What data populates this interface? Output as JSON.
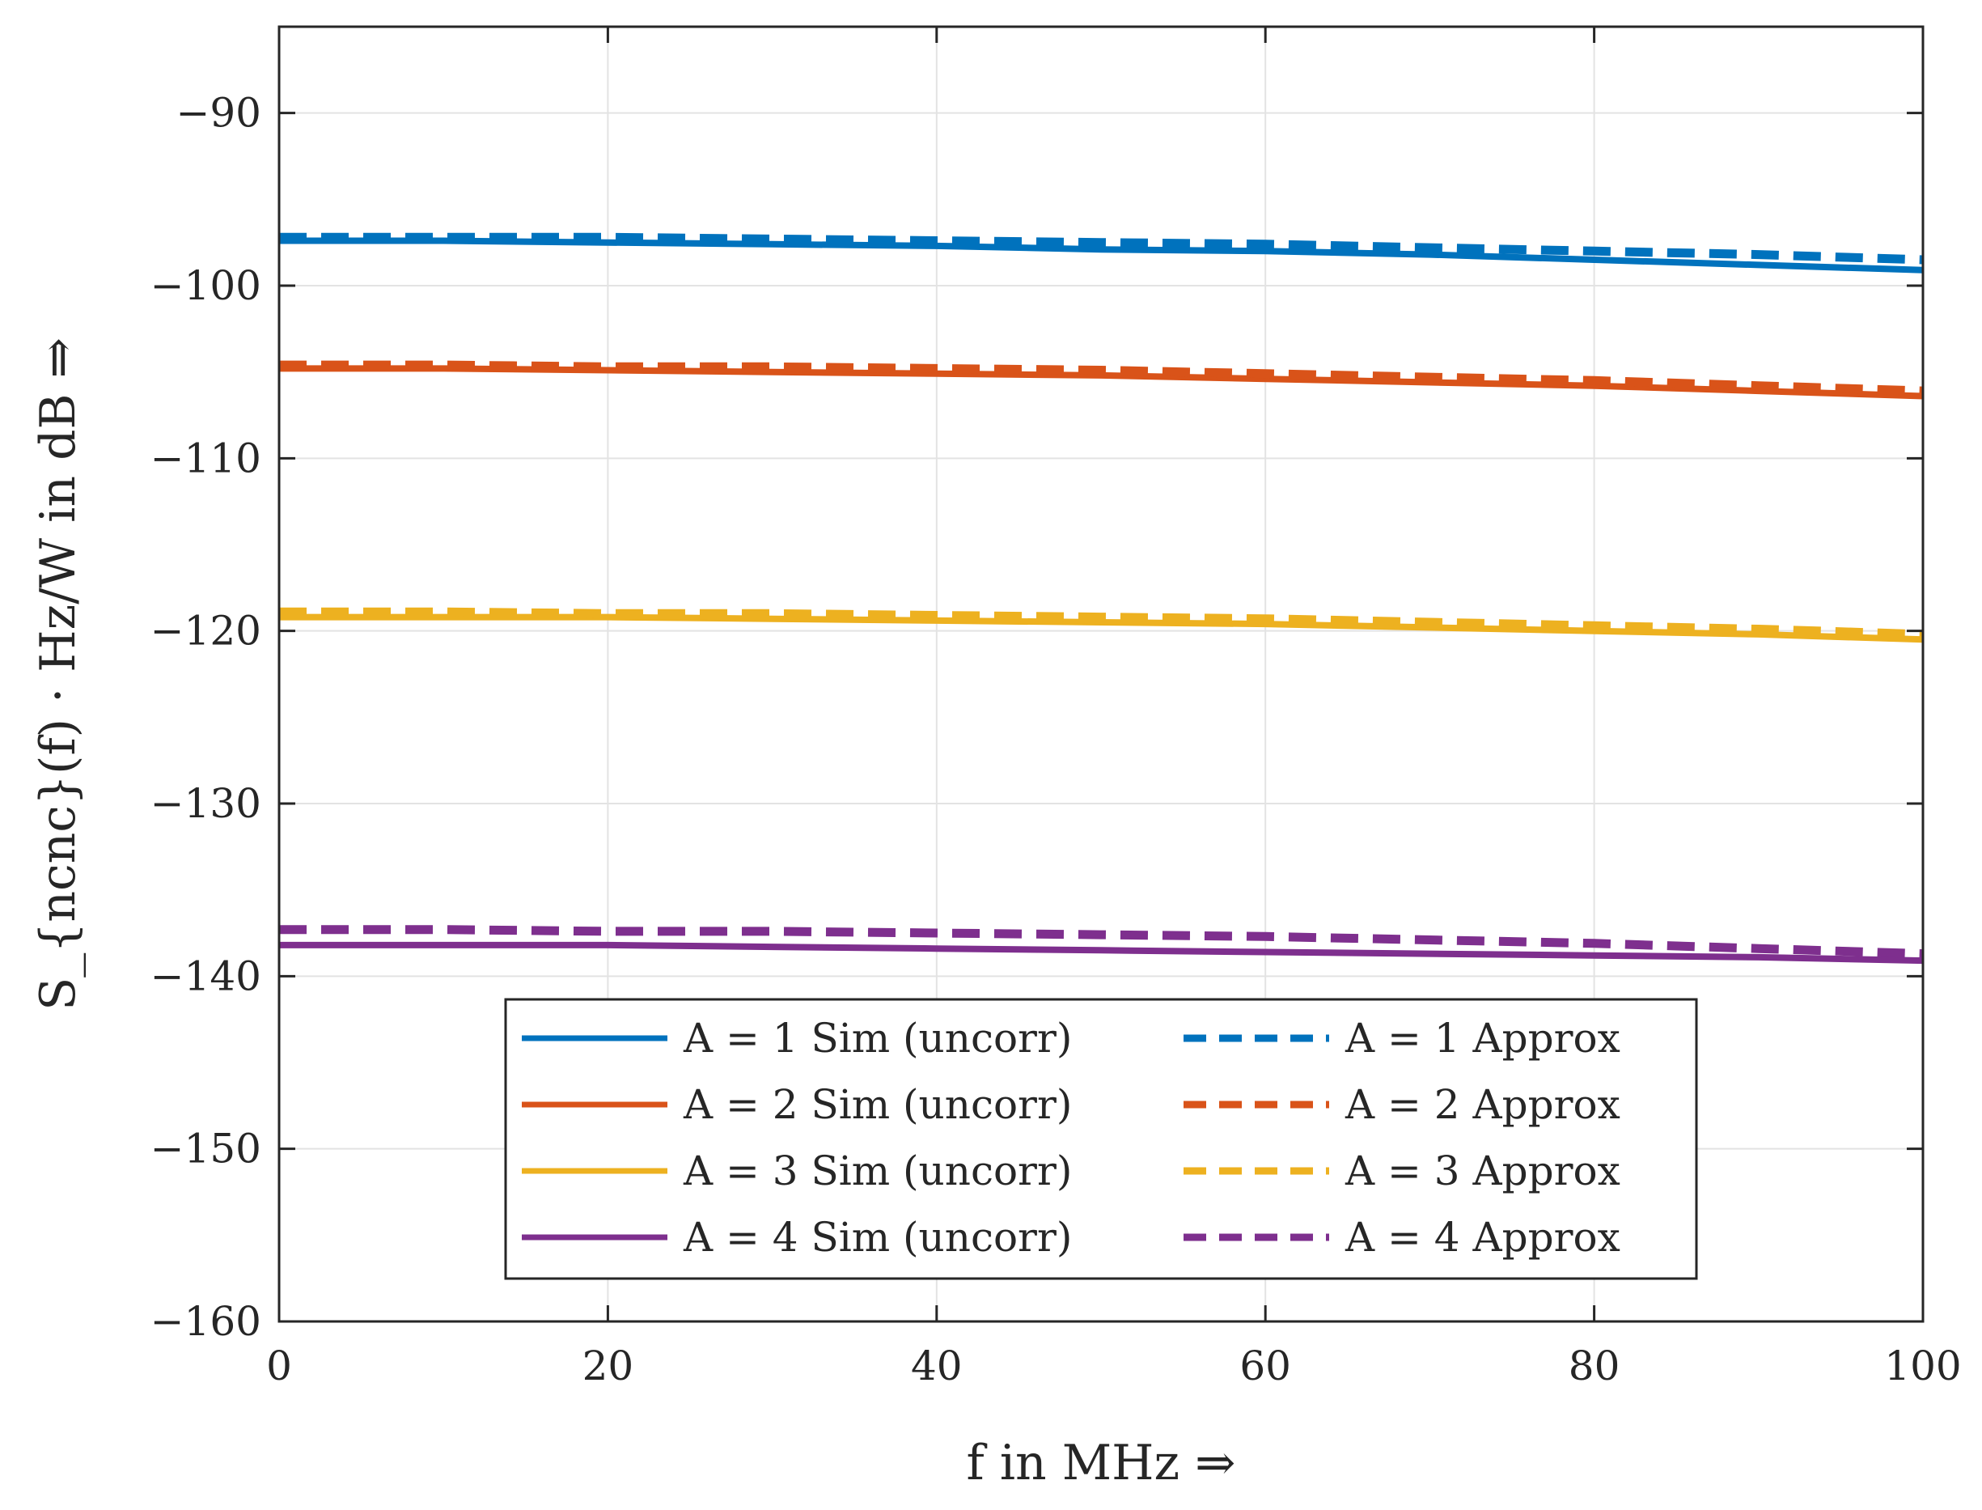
{
  "chart_data": {
    "type": "line",
    "xlabel": "f in MHz ⇒",
    "ylabel": "S_{ncnc}(f) · Hz/W in dB ⇒",
    "xlim": [
      0,
      100
    ],
    "ylim": [
      -160,
      -85
    ],
    "xticks": [
      0,
      20,
      40,
      60,
      80,
      100
    ],
    "yticks": [
      -90,
      -100,
      -110,
      -120,
      -130,
      -140,
      -150,
      -160
    ],
    "xtick_labels": [
      "0",
      "20",
      "40",
      "60",
      "80",
      "100"
    ],
    "ytick_labels": [
      "−90",
      "−100",
      "−110",
      "−120",
      "−130",
      "−140",
      "−150",
      "−160"
    ],
    "grid": true,
    "legend_position": "bottom-center",
    "legend_columns": 2,
    "series": [
      {
        "name": "A = 1 Sim (uncorr)",
        "color": "#0072BD",
        "style": "solid",
        "x": [
          0,
          10,
          20,
          30,
          40,
          50,
          60,
          70,
          80,
          90,
          100
        ],
        "y": [
          -97.4,
          -97.4,
          -97.5,
          -97.6,
          -97.7,
          -97.9,
          -98.0,
          -98.2,
          -98.5,
          -98.8,
          -99.1
        ]
      },
      {
        "name": "A = 2 Sim (uncorr)",
        "color": "#D95319",
        "style": "solid",
        "x": [
          0,
          10,
          20,
          30,
          40,
          50,
          60,
          70,
          80,
          90,
          100
        ],
        "y": [
          -104.8,
          -104.8,
          -104.9,
          -105.0,
          -105.1,
          -105.2,
          -105.4,
          -105.6,
          -105.8,
          -106.1,
          -106.4
        ]
      },
      {
        "name": "A = 3 Sim (uncorr)",
        "color": "#EDB120",
        "style": "solid",
        "x": [
          0,
          10,
          20,
          30,
          40,
          50,
          60,
          70,
          80,
          90,
          100
        ],
        "y": [
          -119.2,
          -119.2,
          -119.2,
          -119.3,
          -119.4,
          -119.5,
          -119.6,
          -119.8,
          -120.0,
          -120.2,
          -120.5
        ]
      },
      {
        "name": "A = 4 Sim (uncorr)",
        "color": "#7E2F8E",
        "style": "solid",
        "x": [
          0,
          10,
          20,
          30,
          40,
          50,
          60,
          70,
          80,
          90,
          100
        ],
        "y": [
          -138.2,
          -138.2,
          -138.2,
          -138.3,
          -138.4,
          -138.5,
          -138.6,
          -138.7,
          -138.8,
          -138.9,
          -139.1
        ]
      },
      {
        "name": "A = 1 Approx",
        "color": "#0072BD",
        "style": "dashed",
        "x": [
          0,
          10,
          20,
          30,
          40,
          50,
          60,
          70,
          80,
          90,
          100
        ],
        "y": [
          -97.2,
          -97.2,
          -97.2,
          -97.3,
          -97.4,
          -97.5,
          -97.6,
          -97.8,
          -98.0,
          -98.2,
          -98.5
        ]
      },
      {
        "name": "A = 2 Approx",
        "color": "#D95319",
        "style": "dashed",
        "x": [
          0,
          10,
          20,
          30,
          40,
          50,
          60,
          70,
          80,
          90,
          100
        ],
        "y": [
          -104.6,
          -104.6,
          -104.7,
          -104.7,
          -104.8,
          -104.9,
          -105.1,
          -105.3,
          -105.5,
          -105.8,
          -106.1
        ]
      },
      {
        "name": "A = 3 Approx",
        "color": "#EDB120",
        "style": "dashed",
        "x": [
          0,
          10,
          20,
          30,
          40,
          50,
          60,
          70,
          80,
          90,
          100
        ],
        "y": [
          -118.9,
          -118.9,
          -119.0,
          -119.0,
          -119.1,
          -119.2,
          -119.3,
          -119.5,
          -119.7,
          -119.9,
          -120.2
        ]
      },
      {
        "name": "A = 4 Approx",
        "color": "#7E2F8E",
        "style": "dashed",
        "x": [
          0,
          10,
          20,
          30,
          40,
          50,
          60,
          70,
          80,
          90,
          100
        ],
        "y": [
          -137.3,
          -137.3,
          -137.4,
          -137.4,
          -137.5,
          -137.6,
          -137.7,
          -137.9,
          -138.1,
          -138.4,
          -138.7
        ]
      }
    ]
  }
}
